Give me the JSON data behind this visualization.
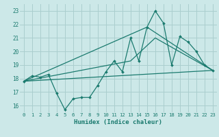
{
  "xlabel": "Humidex (Indice chaleur)",
  "bg_color": "#cce8e8",
  "grid_color": "#aacece",
  "line_color": "#1a7a6e",
  "xlim": [
    -0.5,
    23.5
  ],
  "ylim": [
    15.5,
    23.5
  ],
  "yticks": [
    16,
    17,
    18,
    19,
    20,
    21,
    22,
    23
  ],
  "xticks": [
    0,
    1,
    2,
    3,
    4,
    5,
    6,
    7,
    8,
    9,
    10,
    11,
    12,
    13,
    14,
    15,
    16,
    17,
    18,
    19,
    20,
    21,
    22,
    23
  ],
  "line1_x": [
    0,
    1,
    2,
    3,
    4,
    5,
    6,
    7,
    8,
    9,
    10,
    11,
    12,
    13,
    14,
    15,
    16,
    17,
    18,
    19,
    20,
    21,
    22,
    23
  ],
  "line1_y": [
    17.8,
    18.2,
    18.1,
    18.3,
    16.9,
    15.7,
    16.5,
    16.6,
    16.6,
    17.5,
    18.5,
    19.3,
    18.5,
    21.0,
    19.3,
    21.8,
    23.0,
    22.1,
    19.0,
    21.1,
    20.7,
    20.0,
    19.0,
    18.6
  ],
  "line2_x": [
    0,
    23
  ],
  "line2_y": [
    17.8,
    18.6
  ],
  "line3_x": [
    0,
    13,
    16,
    23
  ],
  "line3_y": [
    17.8,
    19.3,
    21.0,
    18.6
  ],
  "line4_x": [
    0,
    15,
    23
  ],
  "line4_y": [
    17.8,
    21.8,
    18.6
  ]
}
